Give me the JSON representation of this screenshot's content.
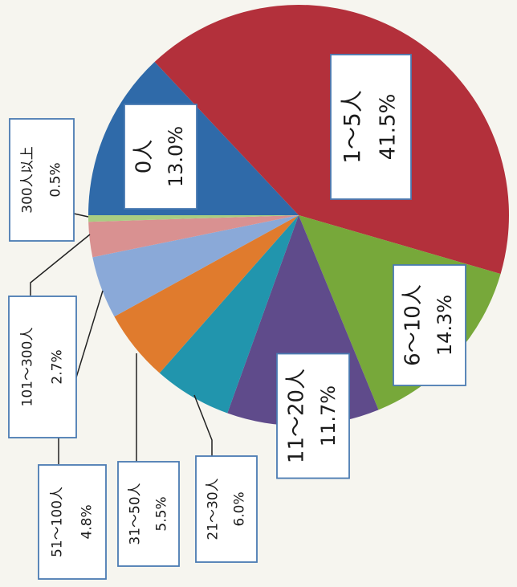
{
  "chart_data": {
    "type": "pie",
    "categories": [
      "0人",
      "1～5人",
      "6～10人",
      "11～20人",
      "21～30人",
      "31～50人",
      "51～100人",
      "101～300人",
      "300人以上"
    ],
    "values": [
      13.0,
      41.5,
      14.3,
      11.7,
      6.0,
      5.5,
      4.8,
      2.7,
      0.5
    ],
    "value_labels": [
      "13.0%",
      "41.5%",
      "14.3%",
      "11.7%",
      "6.0%",
      "5.5%",
      "4.8%",
      "2.7%",
      "0.5%"
    ],
    "colors": [
      "#2f6aa9",
      "#b3303b",
      "#77a83a",
      "#5f4b8b",
      "#2195ad",
      "#e07b2d",
      "#8aa9d8",
      "#d99191",
      "#a9cd82"
    ]
  }
}
